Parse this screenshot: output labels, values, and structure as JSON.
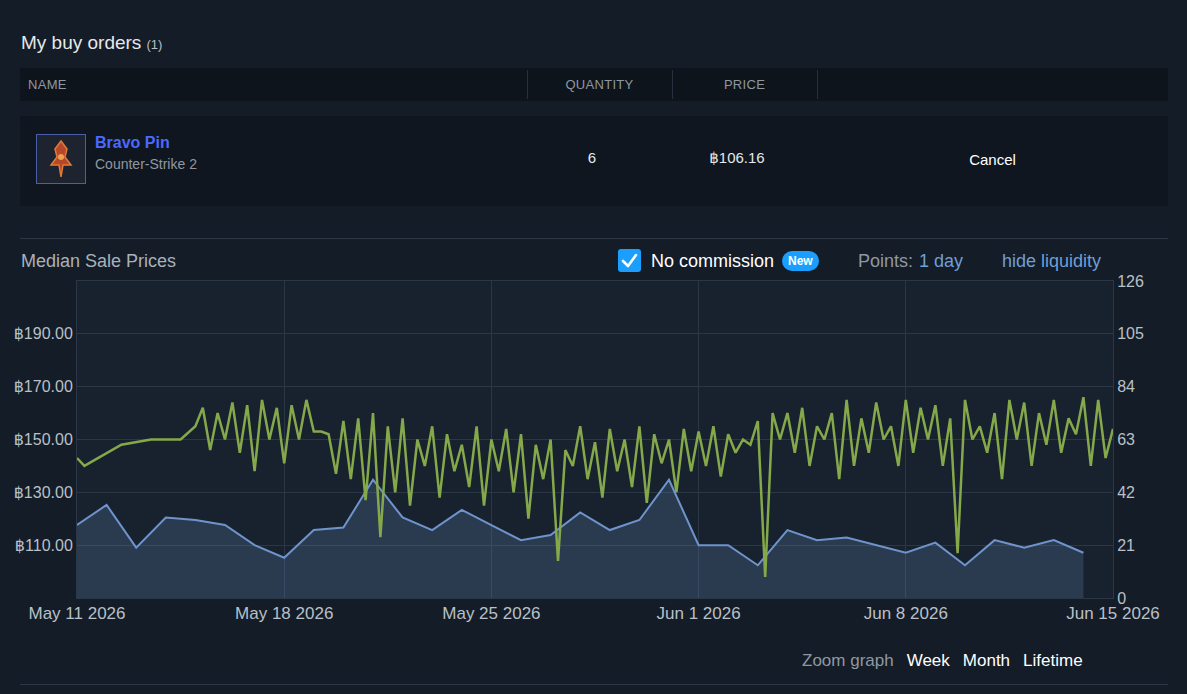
{
  "buy_orders": {
    "title": "My buy orders",
    "count": "(1)",
    "columns": [
      "NAME",
      "QUANTITY",
      "PRICE"
    ],
    "rows": [
      {
        "name": "Bravo Pin",
        "game": "Counter-Strike 2",
        "quantity": 6,
        "price": "฿106.16",
        "action": "Cancel"
      }
    ]
  },
  "price_panel": {
    "title": "Median Sale Prices",
    "no_commission": {
      "label": "No commission",
      "checked": true,
      "badge": "New"
    },
    "points": {
      "label": "Points:",
      "value": "1 day"
    },
    "liquidity_toggle": "hide liquidity",
    "zoom": {
      "label": "Zoom graph",
      "options": [
        "Week",
        "Month",
        "Lifetime"
      ]
    }
  },
  "chart_data": {
    "type": "line",
    "xlim": [
      "2026-05-11",
      "2026-06-15"
    ],
    "xticks": [
      {
        "value": "2026-05-11",
        "label": "May 11 2026"
      },
      {
        "value": "2026-05-18",
        "label": "May 18 2026"
      },
      {
        "value": "2026-05-25",
        "label": "May 25 2026"
      },
      {
        "value": "2026-06-01",
        "label": "Jun 1 2026"
      },
      {
        "value": "2026-06-08",
        "label": "Jun 8 2026"
      },
      {
        "value": "2026-06-15",
        "label": "Jun 15 2026"
      }
    ],
    "ylim": [
      90,
      210
    ],
    "yticks": [
      {
        "value": 110,
        "label": "฿110.00"
      },
      {
        "value": 130,
        "label": "฿130.00"
      },
      {
        "value": 150,
        "label": "฿150.00"
      },
      {
        "value": 170,
        "label": "฿170.00"
      },
      {
        "value": 190,
        "label": "฿190.00"
      }
    ],
    "y2lim": [
      0,
      126
    ],
    "y2ticks": [
      0,
      21,
      42,
      63,
      84,
      105,
      126
    ],
    "grid": true,
    "series": [
      {
        "type": "area",
        "color": "#6f94cc",
        "axis": "y2",
        "x": [
          "2026-05-11",
          "2026-05-12",
          "2026-05-13",
          "2026-05-14",
          "2026-05-15",
          "2026-05-16",
          "2026-05-17",
          "2026-05-18",
          "2026-05-19",
          "2026-05-20",
          "2026-05-21",
          "2026-05-22",
          "2026-05-23",
          "2026-05-24",
          "2026-05-25",
          "2026-05-26",
          "2026-05-27",
          "2026-05-28",
          "2026-05-29",
          "2026-05-30",
          "2026-05-31",
          "2026-06-01",
          "2026-06-02",
          "2026-06-03",
          "2026-06-04",
          "2026-06-05",
          "2026-06-06",
          "2026-06-07",
          "2026-06-08",
          "2026-06-09",
          "2026-06-10",
          "2026-06-11",
          "2026-06-12",
          "2026-06-13",
          "2026-06-14"
        ],
        "values": [
          29,
          37,
          20,
          32,
          31,
          29,
          21,
          16,
          27,
          28,
          47,
          32,
          27,
          35,
          29,
          23,
          25,
          34,
          27,
          31,
          47,
          21,
          21,
          13,
          27,
          23,
          24,
          21,
          18,
          22,
          13,
          23,
          20,
          23,
          18
        ]
      },
      {
        "type": "line",
        "color": "#85a84a",
        "x": [
          "2026-05-11 00:00",
          "2026-05-11 06:00",
          "2026-05-12 12:00",
          "2026-05-13 12:00",
          "2026-05-14 12:00",
          "2026-05-15 00:00",
          "2026-05-15 06:00",
          "2026-05-15 12:00",
          "2026-05-15 18:00",
          "2026-05-16 00:00",
          "2026-05-16 06:00",
          "2026-05-16 12:00",
          "2026-05-16 18:00",
          "2026-05-17 00:00",
          "2026-05-17 06:00",
          "2026-05-17 12:00",
          "2026-05-17 18:00",
          "2026-05-18 00:00",
          "2026-05-18 06:00",
          "2026-05-18 12:00",
          "2026-05-18 18:00",
          "2026-05-19 00:00",
          "2026-05-19 06:00",
          "2026-05-19 12:00",
          "2026-05-19 18:00",
          "2026-05-20 00:00",
          "2026-05-20 06:00",
          "2026-05-20 12:00",
          "2026-05-20 18:00",
          "2026-05-21 00:00",
          "2026-05-21 06:00",
          "2026-05-21 12:00",
          "2026-05-21 18:00",
          "2026-05-22 00:00",
          "2026-05-22 06:00",
          "2026-05-22 12:00",
          "2026-05-22 18:00",
          "2026-05-23 00:00",
          "2026-05-23 06:00",
          "2026-05-23 12:00",
          "2026-05-23 18:00",
          "2026-05-24 00:00",
          "2026-05-24 06:00",
          "2026-05-24 12:00",
          "2026-05-24 18:00",
          "2026-05-25 00:00",
          "2026-05-25 06:00",
          "2026-05-25 12:00",
          "2026-05-25 18:00",
          "2026-05-26 00:00",
          "2026-05-26 06:00",
          "2026-05-26 12:00",
          "2026-05-26 18:00",
          "2026-05-27 00:00",
          "2026-05-27 06:00",
          "2026-05-27 12:00",
          "2026-05-27 18:00",
          "2026-05-28 00:00",
          "2026-05-28 06:00",
          "2026-05-28 12:00",
          "2026-05-28 18:00",
          "2026-05-29 00:00",
          "2026-05-29 06:00",
          "2026-05-29 12:00",
          "2026-05-29 18:00",
          "2026-05-30 00:00",
          "2026-05-30 06:00",
          "2026-05-30 12:00",
          "2026-05-30 18:00",
          "2026-05-31 00:00",
          "2026-05-31 06:00",
          "2026-05-31 12:00",
          "2026-05-31 18:00",
          "2026-06-01 00:00",
          "2026-06-01 06:00",
          "2026-06-01 12:00",
          "2026-06-01 18:00",
          "2026-06-02 00:00",
          "2026-06-02 06:00",
          "2026-06-02 12:00",
          "2026-06-02 18:00",
          "2026-06-03 00:00",
          "2026-06-03 06:00",
          "2026-06-03 12:00",
          "2026-06-03 18:00",
          "2026-06-04 00:00",
          "2026-06-04 06:00",
          "2026-06-04 12:00",
          "2026-06-04 18:00",
          "2026-06-05 00:00",
          "2026-06-05 06:00",
          "2026-06-05 12:00",
          "2026-06-05 18:00",
          "2026-06-06 00:00",
          "2026-06-06 06:00",
          "2026-06-06 12:00",
          "2026-06-06 18:00",
          "2026-06-07 00:00",
          "2026-06-07 06:00",
          "2026-06-07 12:00",
          "2026-06-07 18:00",
          "2026-06-08 00:00",
          "2026-06-08 06:00",
          "2026-06-08 12:00",
          "2026-06-08 18:00",
          "2026-06-09 00:00",
          "2026-06-09 06:00",
          "2026-06-09 12:00",
          "2026-06-09 18:00",
          "2026-06-10 00:00",
          "2026-06-10 06:00",
          "2026-06-10 12:00",
          "2026-06-10 18:00",
          "2026-06-11 00:00",
          "2026-06-11 06:00",
          "2026-06-11 12:00",
          "2026-06-11 18:00",
          "2026-06-12 00:00",
          "2026-06-12 06:00",
          "2026-06-12 12:00",
          "2026-06-12 18:00",
          "2026-06-13 00:00",
          "2026-06-13 06:00",
          "2026-06-13 12:00",
          "2026-06-13 18:00",
          "2026-06-14 00:00",
          "2026-06-14 06:00",
          "2026-06-14 12:00",
          "2026-06-14 18:00",
          "2026-06-15 00:00"
        ],
        "values": [
          143,
          140,
          148,
          150,
          150,
          155,
          162,
          146,
          160,
          150,
          164,
          145,
          163,
          138,
          165,
          150,
          162,
          141,
          163,
          150,
          165,
          153,
          153,
          152,
          137,
          157,
          135,
          158,
          127,
          160,
          113,
          155,
          130,
          158,
          125,
          150,
          140,
          155,
          128,
          152,
          138,
          148,
          132,
          155,
          125,
          150,
          138,
          154,
          130,
          152,
          120,
          148,
          135,
          150,
          104,
          146,
          140,
          155,
          135,
          149,
          128,
          154,
          138,
          150,
          132,
          155,
          126,
          152,
          141,
          150,
          130,
          154,
          138,
          153,
          140,
          155,
          136,
          152,
          145,
          150,
          148,
          157,
          98,
          160,
          150,
          160,
          145,
          162,
          140,
          155,
          150,
          160,
          135,
          165,
          140,
          158,
          145,
          164,
          150,
          155,
          140,
          165,
          145,
          162,
          150,
          163,
          140,
          158,
          107,
          165,
          150,
          155,
          145,
          160,
          135,
          165,
          150,
          164,
          140,
          160,
          148,
          165,
          145,
          158,
          152,
          166,
          140,
          165,
          143,
          154
        ]
      }
    ]
  }
}
